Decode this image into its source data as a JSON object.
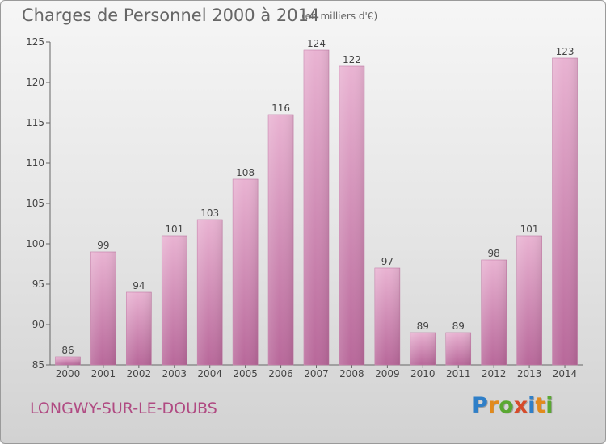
{
  "title": "Charges de Personnel 2000 à 2014",
  "subtitle": "(en milliers d'€)",
  "commune": "LONGWY-SUR-LE-DOUBS",
  "logo": {
    "letters": [
      {
        "char": "P",
        "color": "#2f7fc8"
      },
      {
        "char": "r",
        "color": "#e28a1c"
      },
      {
        "char": "o",
        "color": "#5aa832"
      },
      {
        "char": "x",
        "color": "#d64b2a"
      },
      {
        "char": "i",
        "color": "#2f7fc8"
      },
      {
        "char": "t",
        "color": "#e28a1c"
      },
      {
        "char": "i",
        "color": "#5aa832"
      }
    ]
  },
  "chart_data": {
    "type": "bar",
    "categories": [
      "2000",
      "2001",
      "2002",
      "2003",
      "2004",
      "2005",
      "2006",
      "2007",
      "2008",
      "2009",
      "2010",
      "2011",
      "2012",
      "2013",
      "2014"
    ],
    "values": [
      86,
      99,
      94,
      101,
      103,
      108,
      116,
      124,
      122,
      97,
      89,
      89,
      98,
      101,
      123
    ],
    "ylim": [
      85,
      125
    ],
    "yticks": [
      85,
      90,
      95,
      100,
      105,
      110,
      115,
      120,
      125
    ],
    "grid": false,
    "bar_color": "#d98ab5"
  }
}
